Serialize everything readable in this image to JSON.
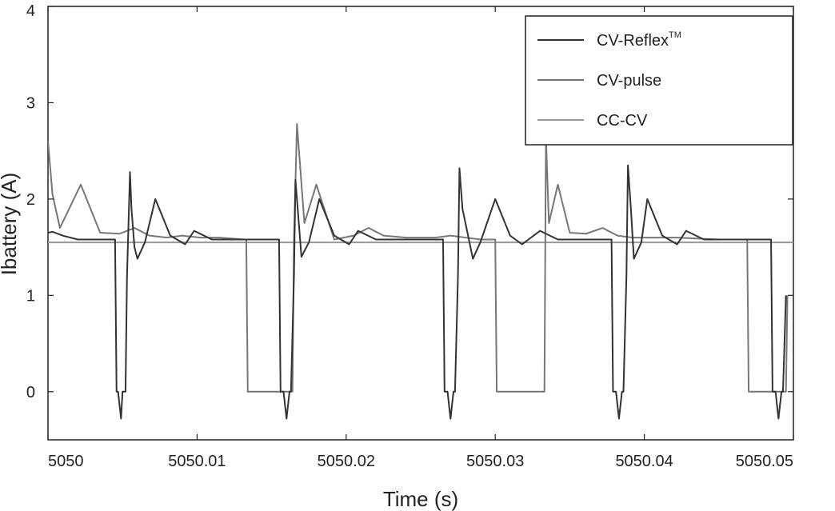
{
  "chart_data": {
    "type": "line",
    "xlabel": "Time (s)",
    "ylabel": "Ibattery (A)",
    "xlim": [
      5050,
      5050.05
    ],
    "ylim": [
      -0.5,
      4
    ],
    "xticks": [
      5050,
      5050.01,
      5050.02,
      5050.03,
      5050.04,
      5050.05
    ],
    "xtick_labels": [
      "5050",
      "5050.01",
      "5050.02",
      "5050.03",
      "5050.04",
      "5050.05"
    ],
    "yticks": [
      0,
      1,
      2,
      3,
      4
    ],
    "ytick_labels": [
      "0",
      "1",
      "2",
      "3",
      "4"
    ],
    "grid": false,
    "legend_position": "top-right",
    "series": [
      {
        "name": "CV-Reflex",
        "name_superscript": "TM",
        "color": "#333333",
        "x": [
          5050,
          5050.0003,
          5050.001,
          5050.002,
          5050.0027,
          5050.0045,
          5050.0046,
          5050.0047,
          5050.0049,
          5050.005,
          5050.0052,
          5050.0053,
          5050.0055,
          5050.0056,
          5050.0058,
          5050.006,
          5050.0065,
          5050.0072,
          5050.0082,
          5050.0092,
          5050.0098,
          5050.011,
          5050.0122,
          5050.0135,
          5050.0155,
          5050.0156,
          5050.0158,
          5050.016,
          5050.0162,
          5050.0163,
          5050.0165,
          5050.0166,
          5050.0168,
          5050.017,
          5050.0175,
          5050.0182,
          5050.0192,
          5050.0202,
          5050.0208,
          5050.022,
          5050.0232,
          5050.0245,
          5050.0265,
          5050.0266,
          5050.0268,
          5050.027,
          5050.0272,
          5050.0273,
          5050.0275,
          5050.0276,
          5050.0278,
          5050.0285,
          5050.029,
          5050.03,
          5050.031,
          5050.0318,
          5050.033,
          5050.0342,
          5050.0358,
          5050.0378,
          5050.0379,
          5050.0381,
          5050.0383,
          5050.0385,
          5050.0386,
          5050.0388,
          5050.0389,
          5050.0391,
          5050.0393,
          5050.0398,
          5050.0402,
          5050.0412,
          5050.0422,
          5050.0428,
          5050.044,
          5050.0452,
          5050.0465,
          5050.0485,
          5050.0486,
          5050.0488,
          5050.049,
          5050.0492,
          5050.0493,
          5050.0495
        ],
        "y": [
          1.65,
          1.66,
          1.62,
          1.58,
          1.58,
          1.58,
          0.0,
          0.0,
          -0.28,
          0.0,
          0.0,
          1.2,
          2.28,
          1.9,
          1.5,
          1.38,
          1.55,
          2.0,
          1.62,
          1.53,
          1.67,
          1.58,
          1.58,
          1.58,
          1.58,
          0.0,
          0.0,
          -0.28,
          0.0,
          0.0,
          1.2,
          2.2,
          1.8,
          1.4,
          1.55,
          2.0,
          1.62,
          1.53,
          1.67,
          1.58,
          1.58,
          1.58,
          1.58,
          0.0,
          0.0,
          -0.28,
          0.0,
          0.0,
          1.2,
          2.32,
          1.9,
          1.38,
          1.55,
          2.0,
          1.62,
          1.53,
          1.67,
          1.58,
          1.58,
          1.58,
          0.0,
          0.0,
          -0.28,
          0.0,
          0.0,
          1.2,
          2.35,
          1.9,
          1.38,
          1.55,
          2.0,
          1.62,
          1.53,
          1.67,
          1.58,
          1.58,
          1.58,
          1.58,
          0.0,
          0.0,
          -0.28,
          0.0,
          0.0,
          1.0
        ]
      },
      {
        "name": "CV-pulse",
        "color": "#777777",
        "x": [
          5050,
          5050.0003,
          5050.0008,
          5050.0022,
          5050.0035,
          5050.0048,
          5050.0058,
          5050.0068,
          5050.008,
          5050.009,
          5050.0102,
          5050.0115,
          5050.0132,
          5050.0133,
          5050.0134,
          5050.0164,
          5050.0165,
          5050.0167,
          5050.0172,
          5050.018,
          5050.0192,
          5050.0205,
          5050.0215,
          5050.0225,
          5050.024,
          5050.026,
          5050.027,
          5050.028,
          5050.029,
          5050.03,
          5050.0301,
          5050.0302,
          5050.0333,
          5050.0334,
          5050.0336,
          5050.0342,
          5050.035,
          5050.0361,
          5050.0372,
          5050.0382,
          5050.0392,
          5050.0405,
          5050.0422,
          5050.045,
          5050.0469,
          5050.047,
          5050.0471,
          5050.0495,
          5050.0496
        ],
        "y": [
          2.6,
          2.05,
          1.7,
          2.15,
          1.65,
          1.64,
          1.7,
          1.62,
          1.6,
          1.62,
          1.6,
          1.6,
          1.58,
          1.58,
          0.0,
          0.0,
          1.58,
          2.78,
          1.75,
          2.15,
          1.58,
          1.62,
          1.7,
          1.62,
          1.6,
          1.6,
          1.62,
          1.6,
          1.58,
          1.58,
          0.0,
          0.0,
          0.0,
          2.65,
          1.75,
          2.15,
          1.65,
          1.64,
          1.7,
          1.62,
          1.6,
          1.6,
          1.6,
          1.58,
          1.58,
          0.0,
          0.0,
          0.0,
          1.0
        ]
      },
      {
        "name": "CC-CV",
        "color": "#999999",
        "x": [
          5050,
          5050.05
        ],
        "y": [
          1.55,
          1.55
        ]
      }
    ]
  }
}
